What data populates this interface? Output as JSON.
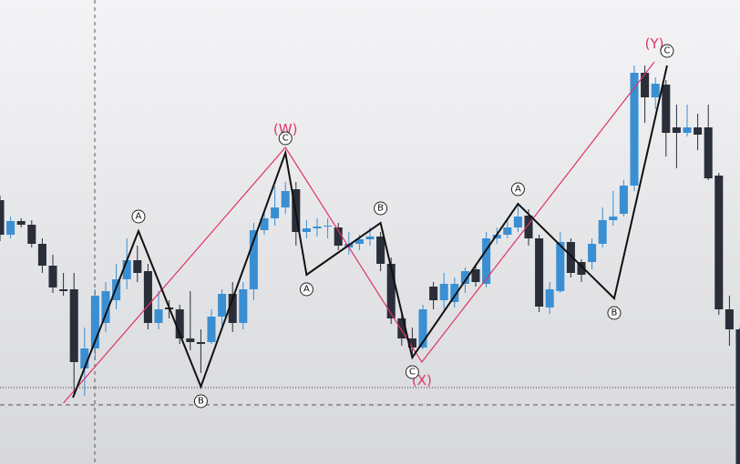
{
  "chart_data": {
    "type": "candlestick",
    "xlim": [
      0,
      70
    ],
    "ylim": [
      0,
      510
    ],
    "up_color": "#3a8fd3",
    "down_color": "#2a2e39",
    "open": [
      290,
      252,
      267,
      263,
      242,
      218,
      192,
      192,
      105,
      127,
      155,
      180,
      203,
      224,
      212,
      155,
      172,
      170,
      138,
      134,
      134,
      162,
      187,
      155,
      192,
      257,
      270,
      282,
      302,
      255,
      259,
      261,
      260,
      238,
      242,
      247,
      250,
      220,
      160,
      138,
      128,
      195,
      180,
      178,
      198,
      214,
      198,
      248,
      252,
      260,
      273,
      248,
      172,
      190,
      244,
      222,
      222,
      242,
      268,
      275,
      306,
      430,
      403,
      417,
      370,
      364,
      370,
      370,
      317,
      170,
      148
    ],
    "high": [
      295,
      272,
      270,
      268,
      248,
      230,
      210,
      210,
      150,
      192,
      200,
      220,
      248,
      240,
      220,
      190,
      180,
      175,
      190,
      148,
      170,
      192,
      200,
      200,
      265,
      278,
      305,
      310,
      310,
      268,
      270,
      270,
      265,
      255,
      252,
      260,
      255,
      227,
      165,
      150,
      175,
      200,
      210,
      205,
      216,
      220,
      255,
      260,
      270,
      285,
      280,
      252,
      200,
      255,
      248,
      225,
      248,
      282,
      300,
      312,
      438,
      438,
      425,
      422,
      395,
      395,
      385,
      395,
      320,
      185,
      150
    ],
    "low": [
      245,
      248,
      260,
      238,
      210,
      188,
      185,
      78,
      75,
      115,
      145,
      170,
      192,
      200,
      148,
      148,
      160,
      132,
      125,
      100,
      132,
      150,
      145,
      148,
      180,
      252,
      262,
      275,
      240,
      248,
      250,
      248,
      235,
      230,
      235,
      240,
      212,
      154,
      130,
      120,
      126,
      170,
      170,
      172,
      188,
      195,
      194,
      242,
      248,
      255,
      240,
      167,
      165,
      188,
      205,
      200,
      214,
      238,
      262,
      272,
      300,
      375,
      390,
      338,
      325,
      360,
      345,
      312,
      164,
      130,
      0
    ],
    "close": [
      252,
      267,
      263,
      242,
      218,
      194,
      190,
      112,
      127,
      185,
      190,
      203,
      224,
      210,
      155,
      170,
      170,
      138,
      134,
      132,
      162,
      187,
      155,
      192,
      257,
      270,
      282,
      300,
      255,
      259,
      261,
      262,
      240,
      242,
      247,
      250,
      220,
      160,
      138,
      128,
      170,
      180,
      198,
      198,
      212,
      200,
      248,
      252,
      260,
      272,
      248,
      173,
      192,
      244,
      210,
      208,
      242,
      268,
      272,
      306,
      430,
      403,
      418,
      364,
      364,
      370,
      362,
      314,
      170,
      148,
      0
    ],
    "waves": [
      {
        "color": "#e0336a",
        "x": [
          6,
          27,
          39.9,
          61.9
        ],
        "y": [
          67,
          348,
          112,
          442
        ],
        "labels": [
          null,
          "(W)",
          "(X)",
          "(Y)"
        ]
      },
      {
        "color": "#111111",
        "x": [
          6.9,
          13.1,
          19,
          27,
          29,
          36,
          39,
          49,
          58.1,
          63.1
        ],
        "y": [
          73,
          256,
          85,
          342,
          208,
          265,
          117,
          286,
          182,
          438
        ],
        "labels": [
          null,
          "A",
          "B",
          "C",
          "A",
          "B",
          "C",
          "A",
          "B",
          "C"
        ]
      }
    ]
  }
}
